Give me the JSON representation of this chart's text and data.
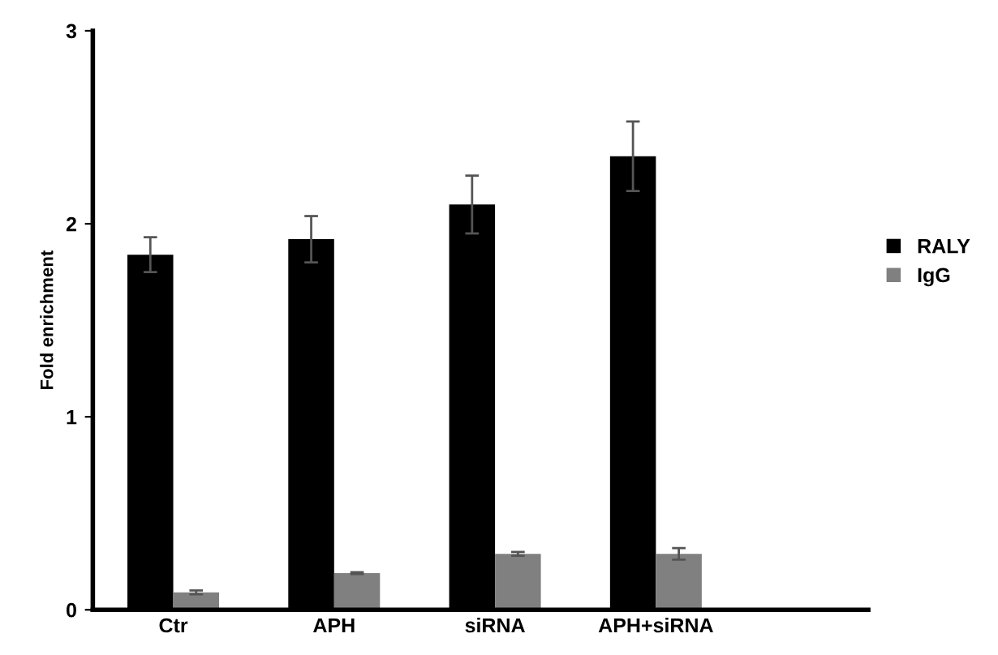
{
  "chart_data": {
    "type": "bar",
    "ylabel": "Fold enrichment",
    "categories": [
      "Ctr",
      "APH",
      "siRNA",
      "APH+siRNA"
    ],
    "series": [
      {
        "name": "RALY",
        "color": "#000000",
        "values": [
          1.84,
          1.92,
          2.1,
          2.35
        ],
        "errors": [
          0.09,
          0.12,
          0.15,
          0.18
        ]
      },
      {
        "name": "IgG",
        "color": "#808080",
        "values": [
          0.09,
          0.19,
          0.29,
          0.29
        ],
        "errors": [
          0.01,
          0.005,
          0.01,
          0.03
        ]
      }
    ],
    "ylim": [
      0,
      3
    ],
    "yticks": [
      0,
      1,
      2,
      3
    ],
    "grid": false,
    "legend": "right"
  }
}
